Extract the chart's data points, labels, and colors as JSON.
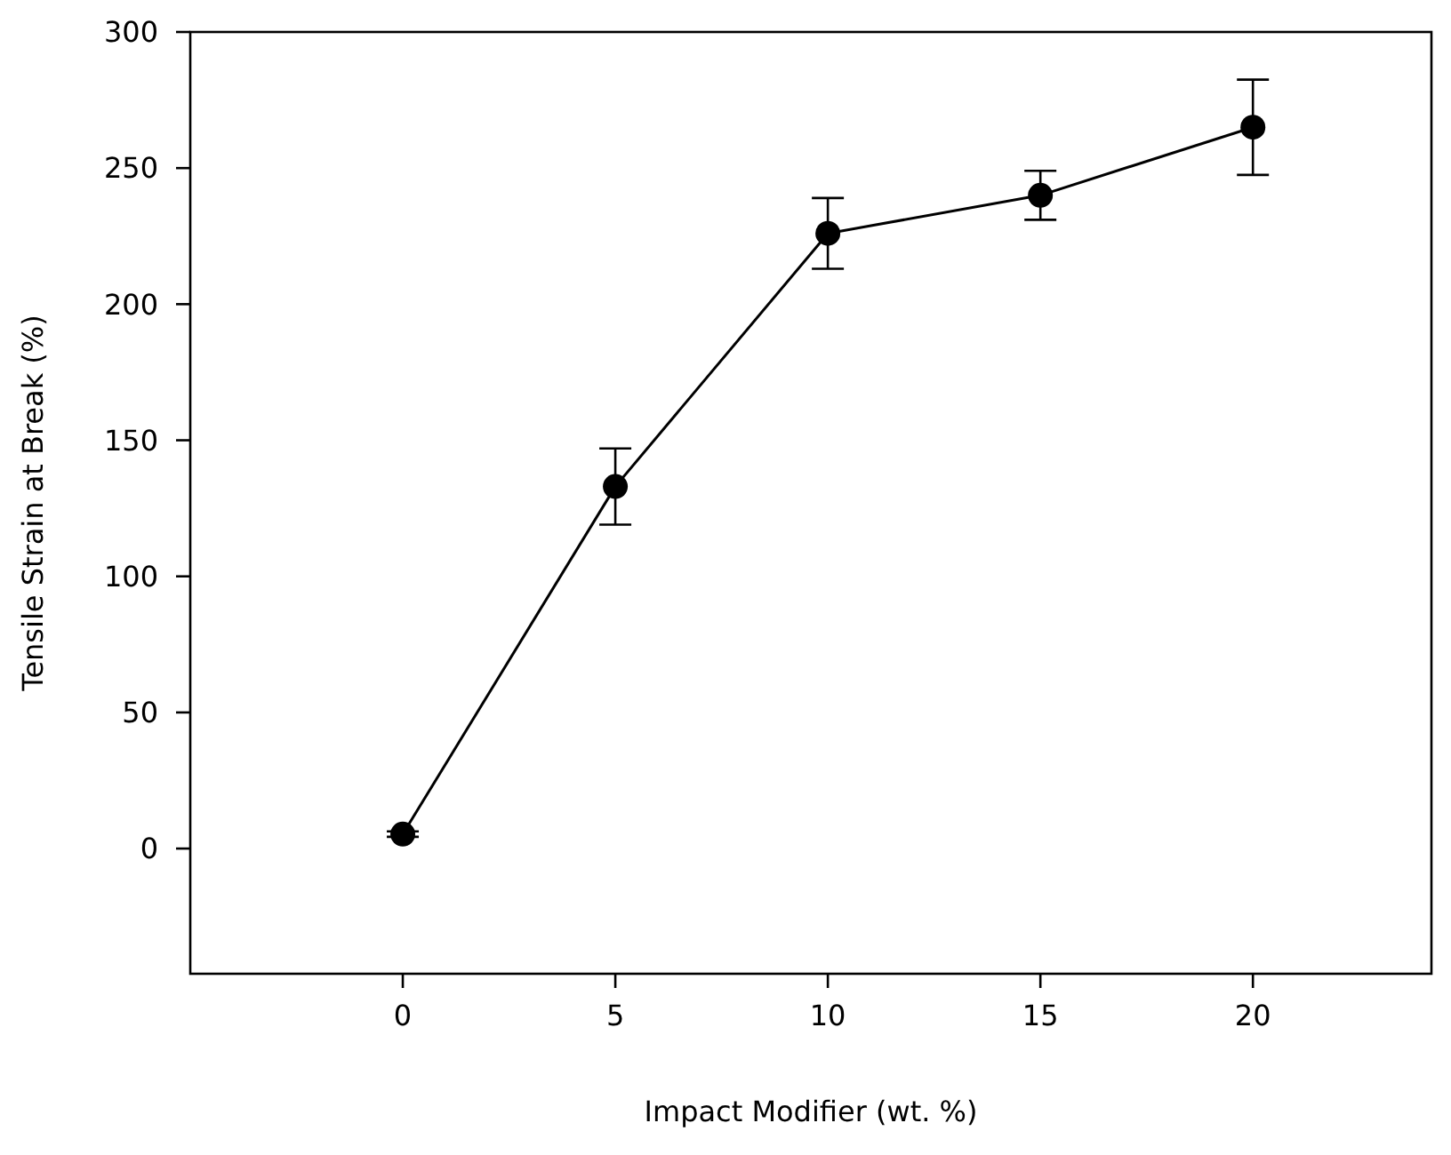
{
  "chart_data": {
    "type": "line",
    "xlabel": "Impact Modifier (wt. %)",
    "ylabel": "Tensile Strain at Break (%)",
    "x": [
      0,
      5,
      10,
      15,
      20
    ],
    "series": [
      {
        "color": "#000000",
        "values": [
          5.3,
          133,
          226,
          240,
          265
        ],
        "errors": [
          1,
          14,
          13,
          9,
          17.5
        ]
      }
    ],
    "xlim": [
      -5,
      24.2
    ],
    "xticks": [
      0,
      5,
      10,
      15,
      20
    ],
    "ylim": [
      -46,
      300
    ],
    "yticks": [
      0,
      50,
      100,
      150,
      200,
      250,
      300
    ],
    "grid": false,
    "marker": "circle",
    "line_style": "solid"
  }
}
